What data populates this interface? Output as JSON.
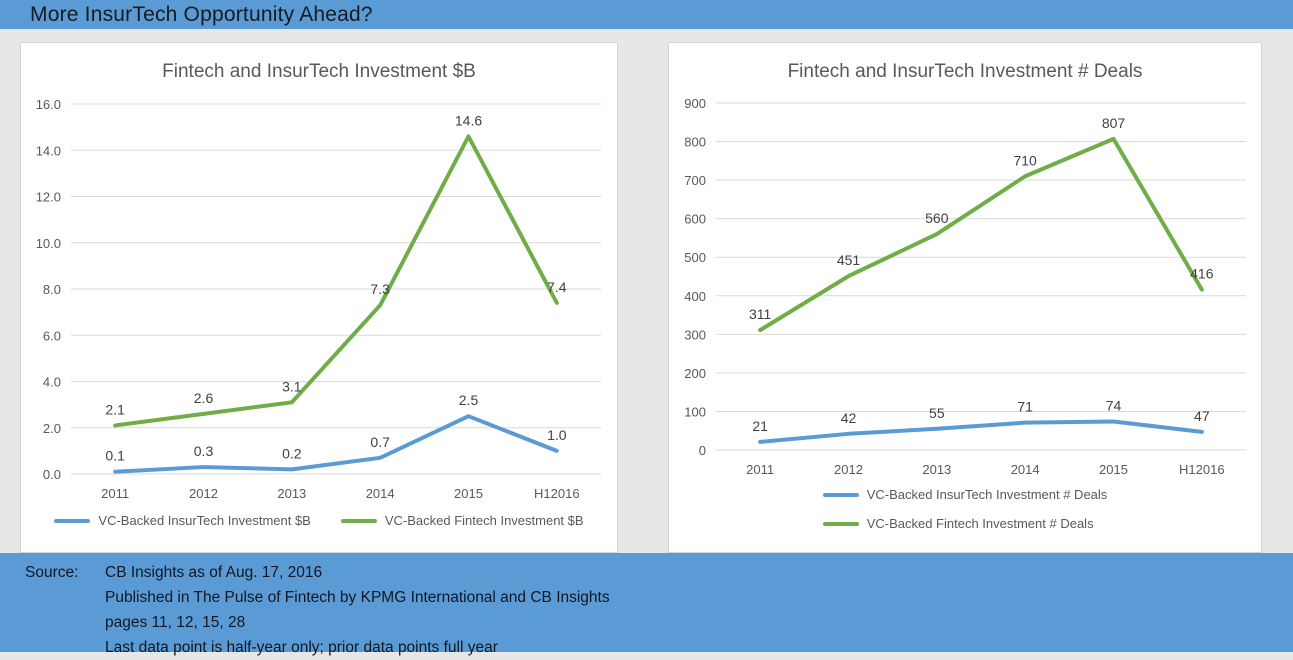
{
  "slide": {
    "title": "More InsurTech Opportunity Ahead?"
  },
  "colors": {
    "banner": "#5B9BD5",
    "background": "#E7E7E7",
    "panel": "#FFFFFF",
    "insurtech_blue": "#5B9BD5",
    "fintech_green": "#70AD47",
    "gridline": "#D9D9D9",
    "axis_text": "#595959",
    "data_label_text": "#404040",
    "chart_title_text": "#595959"
  },
  "chart_data": [
    {
      "type": "line",
      "title": "Fintech and InsurTech Investment $B",
      "categories": [
        "2011",
        "2012",
        "2013",
        "2014",
        "2015",
        "H12016"
      ],
      "series": [
        {
          "name": "VC-Backed InsurTech Investment $B",
          "color": "#5B9BD5",
          "values": [
            0.1,
            0.3,
            0.2,
            0.7,
            2.5,
            1.0
          ]
        },
        {
          "name": "VC-Backed Fintech Investment $B",
          "color": "#70AD47",
          "values": [
            2.1,
            2.6,
            3.1,
            7.3,
            14.6,
            7.4
          ]
        }
      ],
      "ylim": [
        0,
        16
      ],
      "ytick_step": 2,
      "value_format": "one_decimal",
      "grid": true,
      "data_labels": true,
      "legend_position": "bottom-horizontal"
    },
    {
      "type": "line",
      "title": "Fintech and InsurTech Investment # Deals",
      "categories": [
        "2011",
        "2012",
        "2013",
        "2014",
        "2015",
        "H12016"
      ],
      "series": [
        {
          "name": "VC-Backed InsurTech Investment # Deals",
          "color": "#5B9BD5",
          "values": [
            21,
            42,
            55,
            71,
            74,
            47
          ]
        },
        {
          "name": "VC-Backed Fintech Investment # Deals",
          "color": "#70AD47",
          "values": [
            311,
            451,
            560,
            710,
            807,
            416
          ]
        }
      ],
      "ylim": [
        0,
        900
      ],
      "ytick_step": 100,
      "value_format": "integer",
      "grid": true,
      "data_labels": true,
      "legend_position": "bottom-stacked"
    }
  ],
  "footer": {
    "label": "Source:",
    "lines": [
      "CB Insights as of Aug. 17, 2016",
      "Published in The Pulse of Fintech by KPMG International and CB Insights",
      "pages 11, 12, 15, 28",
      "Last data point is half-year only; prior data points full year"
    ]
  }
}
